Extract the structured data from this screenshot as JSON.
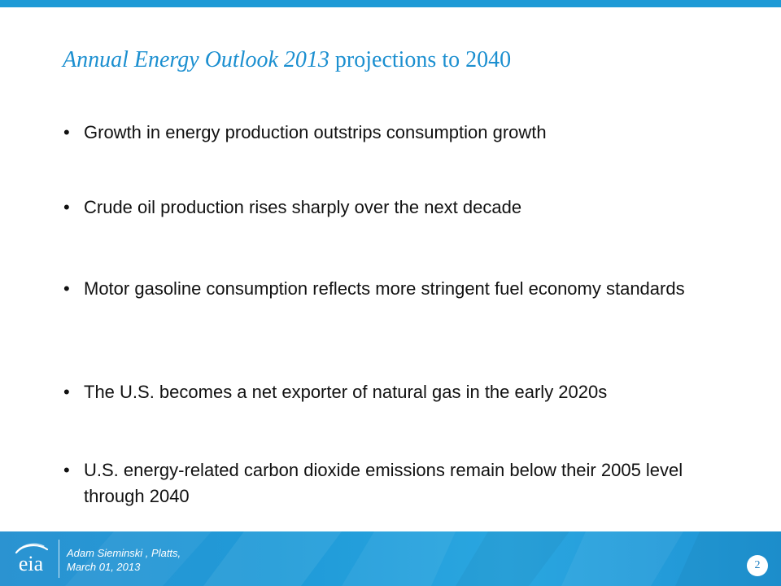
{
  "header": {
    "title_italic": "Annual Energy Outlook 2013",
    "title_rest": " projections to 2040",
    "accent_color": "#1b8fd0"
  },
  "bullets": [
    {
      "marker": "•",
      "text": "Growth in energy production outstrips consumption growth"
    },
    {
      "marker": "•",
      "text": "Crude oil production rises sharply over the next decade"
    },
    {
      "marker": "•",
      "text": "Motor gasoline consumption reflects more stringent fuel economy standards"
    },
    {
      "marker": "•",
      "text": "The U.S. becomes a net exporter of natural gas in the early 2020s"
    },
    {
      "marker": "•",
      "text": "U.S. energy-related carbon dioxide emissions remain below their 2005 level through 2040"
    }
  ],
  "footer": {
    "logo_icon": "eia-logo-icon",
    "logo_text": "eia",
    "presenter_line1": "Adam Sieminski , Platts,",
    "presenter_line2": "March 01, 2013",
    "page_number": "2",
    "color": "#1e9ad6"
  }
}
